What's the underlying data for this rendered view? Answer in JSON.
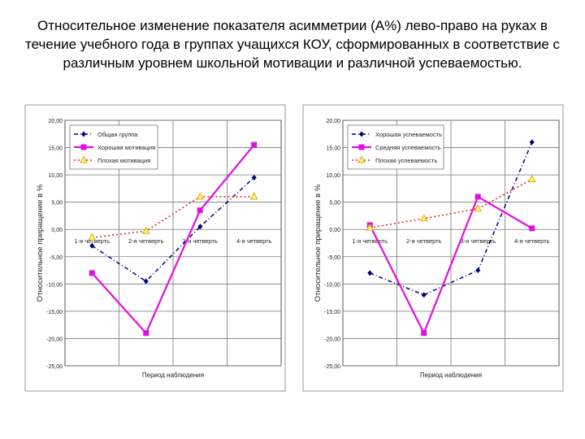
{
  "title": "Относительное изменение показателя асимметрии (А%) лево-право на руках в течение учебного года в группах учащихся КОУ, сформированных в соответствие с различным уровнем школьной мотивации и различной успеваемостью.",
  "chart_data": [
    {
      "type": "line",
      "categories": [
        "1-я четверть",
        "2-я четверть",
        "3-я четверть",
        "4-я четверть"
      ],
      "ylabel": "Относительное приращение в %",
      "xlabel": "Период наблюдения",
      "ylim": [
        -25,
        20
      ],
      "yticks": [
        "20,00",
        "15,00",
        "10,00",
        "5,00",
        "0,00",
        "-5,00",
        "-10,00",
        "-15,00",
        "-20,00",
        "-25,00"
      ],
      "grid": true,
      "legend": "top-left",
      "series": [
        {
          "name": "Общая группа",
          "values": [
            -3,
            -9.5,
            0.5,
            9.5
          ],
          "color": "#00007f",
          "style": "dashdot",
          "marker": "diamond"
        },
        {
          "name": "Хорошая мотивация",
          "values": [
            -8,
            -19,
            3.5,
            15.5
          ],
          "color": "#e010e0",
          "style": "solid",
          "marker": "square"
        },
        {
          "name": "Плохая мотивация",
          "values": [
            -1.5,
            -0.3,
            6,
            6
          ],
          "color": "#e02020",
          "style": "dotted",
          "marker": "triangle"
        }
      ]
    },
    {
      "type": "line",
      "categories": [
        "1-я четверть",
        "2-я четверть",
        "3-я четверть",
        "4-я четверть"
      ],
      "ylabel": "Относительное приращение в %",
      "xlabel": "Период наблюдения",
      "ylim": [
        -25,
        20
      ],
      "yticks": [
        "20,00",
        "15,00",
        "10,00",
        "5,00",
        "0,00",
        "-5,00",
        "-10,00",
        "-15,00",
        "-20,00",
        "-25,00"
      ],
      "grid": true,
      "legend": "top-left",
      "series": [
        {
          "name": "Хорошая успеваемость",
          "values": [
            -8,
            -12,
            -7.5,
            16
          ],
          "color": "#00007f",
          "style": "dashdot",
          "marker": "diamond"
        },
        {
          "name": "Средняя успеваемость",
          "values": [
            0.8,
            -19,
            6,
            0.2
          ],
          "color": "#e010e0",
          "style": "solid",
          "marker": "square"
        },
        {
          "name": "Плохая успеваемость",
          "values": [
            0.3,
            2,
            3.8,
            9.2
          ],
          "color": "#e02020",
          "style": "dotted",
          "marker": "triangle"
        }
      ]
    }
  ]
}
